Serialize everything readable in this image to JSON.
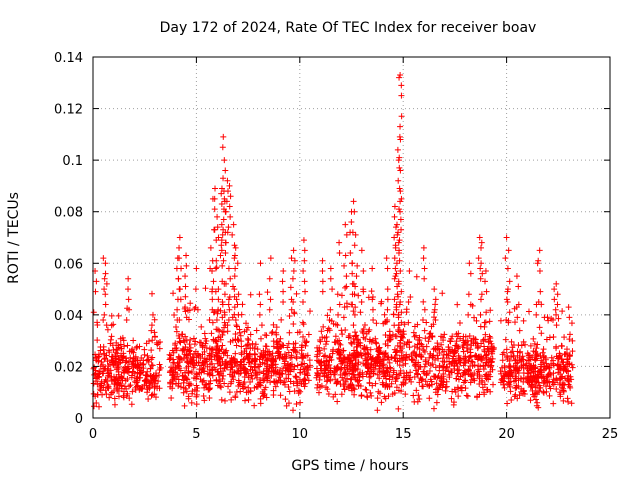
{
  "chart_data": {
    "type": "scatter",
    "title": "Day 172 of 2024, Rate Of TEC Index for receiver boav",
    "xlabel": "GPS time / hours",
    "ylabel": "ROTI / TECUs",
    "xlim": [
      0,
      25
    ],
    "ylim": [
      0,
      0.14
    ],
    "xticks": [
      0,
      5,
      10,
      15,
      20,
      25
    ],
    "xtick_labels": [
      "0",
      "5",
      "10",
      "15",
      "20",
      "25"
    ],
    "yticks": [
      0,
      0.02,
      0.04,
      0.06,
      0.08,
      0.1,
      0.12,
      0.14
    ],
    "ytick_labels": [
      "0",
      "0.02",
      "0.04",
      "0.06",
      "0.08",
      "0.1",
      "0.12",
      "0.14"
    ],
    "grid": true,
    "marker": "+",
    "color": "#ff0000",
    "segments": [
      {
        "start": 0.0,
        "end": 3.3,
        "base": 0.018,
        "spread": 0.012
      },
      {
        "start": 3.7,
        "end": 10.5,
        "base": 0.02,
        "spread": 0.014
      },
      {
        "start": 10.8,
        "end": 19.4,
        "base": 0.021,
        "spread": 0.015
      },
      {
        "start": 19.7,
        "end": 23.2,
        "base": 0.018,
        "spread": 0.012
      }
    ],
    "highlights": [
      {
        "x": 0.1,
        "y": 0.057
      },
      {
        "x": 0.5,
        "y": 0.062
      },
      {
        "x": 0.6,
        "y": 0.06
      },
      {
        "x": 1.7,
        "y": 0.054
      },
      {
        "x": 2.9,
        "y": 0.04
      },
      {
        "x": 4.1,
        "y": 0.062
      },
      {
        "x": 4.2,
        "y": 0.07
      },
      {
        "x": 4.5,
        "y": 0.063
      },
      {
        "x": 5.0,
        "y": 0.058
      },
      {
        "x": 5.7,
        "y": 0.066
      },
      {
        "x": 5.8,
        "y": 0.085
      },
      {
        "x": 5.9,
        "y": 0.089
      },
      {
        "x": 6.0,
        "y": 0.078
      },
      {
        "x": 6.2,
        "y": 0.087
      },
      {
        "x": 6.3,
        "y": 0.109
      },
      {
        "x": 6.35,
        "y": 0.1
      },
      {
        "x": 6.5,
        "y": 0.092
      },
      {
        "x": 6.6,
        "y": 0.09
      },
      {
        "x": 6.8,
        "y": 0.075
      },
      {
        "x": 6.9,
        "y": 0.066
      },
      {
        "x": 7.0,
        "y": 0.06
      },
      {
        "x": 8.1,
        "y": 0.06
      },
      {
        "x": 8.6,
        "y": 0.062
      },
      {
        "x": 9.2,
        "y": 0.057
      },
      {
        "x": 9.6,
        "y": 0.062
      },
      {
        "x": 9.7,
        "y": 0.065
      },
      {
        "x": 10.2,
        "y": 0.069
      },
      {
        "x": 11.1,
        "y": 0.061
      },
      {
        "x": 11.5,
        "y": 0.058
      },
      {
        "x": 11.9,
        "y": 0.068
      },
      {
        "x": 12.2,
        "y": 0.075
      },
      {
        "x": 12.5,
        "y": 0.08
      },
      {
        "x": 12.6,
        "y": 0.084
      },
      {
        "x": 12.7,
        "y": 0.071
      },
      {
        "x": 13.0,
        "y": 0.065
      },
      {
        "x": 13.5,
        "y": 0.058
      },
      {
        "x": 14.2,
        "y": 0.062
      },
      {
        "x": 14.6,
        "y": 0.082
      },
      {
        "x": 14.7,
        "y": 0.075
      },
      {
        "x": 14.75,
        "y": 0.072
      },
      {
        "x": 14.8,
        "y": 0.132
      },
      {
        "x": 14.85,
        "y": 0.133
      },
      {
        "x": 15.3,
        "y": 0.057
      },
      {
        "x": 16.0,
        "y": 0.066
      },
      {
        "x": 16.5,
        "y": 0.05
      },
      {
        "x": 18.2,
        "y": 0.06
      },
      {
        "x": 18.7,
        "y": 0.07
      },
      {
        "x": 18.8,
        "y": 0.068
      },
      {
        "x": 19.0,
        "y": 0.057
      },
      {
        "x": 20.0,
        "y": 0.07
      },
      {
        "x": 20.1,
        "y": 0.065
      },
      {
        "x": 20.5,
        "y": 0.055
      },
      {
        "x": 21.5,
        "y": 0.06
      },
      {
        "x": 21.6,
        "y": 0.065
      },
      {
        "x": 22.3,
        "y": 0.05
      },
      {
        "x": 22.4,
        "y": 0.052
      },
      {
        "x": 23.0,
        "y": 0.043
      }
    ]
  }
}
